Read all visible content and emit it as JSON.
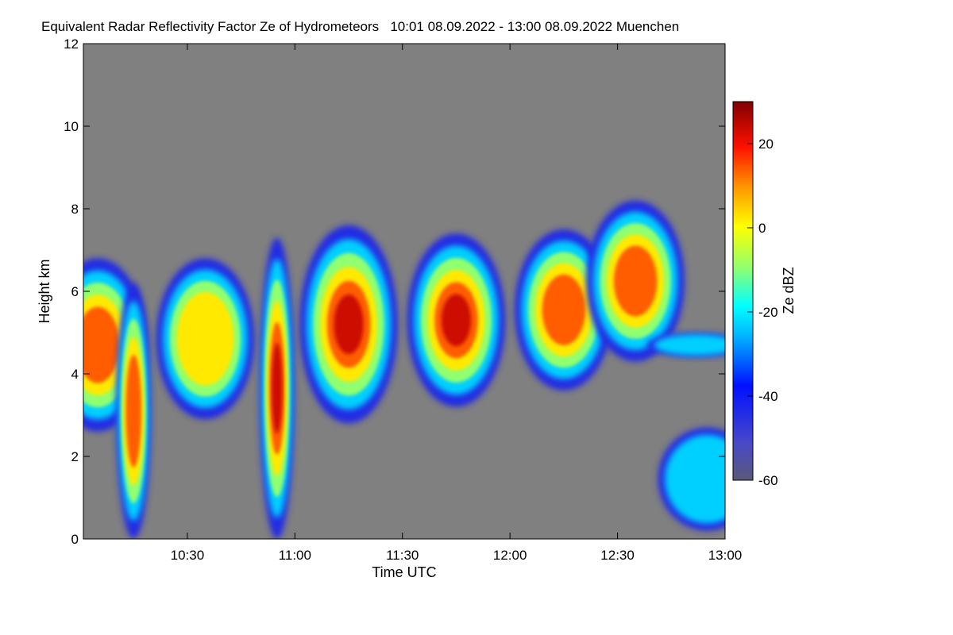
{
  "chart_data": {
    "type": "heatmap",
    "title": "Equivalent Radar Reflectivity Factor Ze of Hydrometeors   10:01 08.09.2022 - 13:00 08.09.2022 Muenchen",
    "xlabel": "Time UTC",
    "ylabel": "Height km",
    "x_ticks": [
      "10:30",
      "11:00",
      "11:30",
      "12:00",
      "12:30",
      "13:00"
    ],
    "xlim": [
      "10:01",
      "13:00"
    ],
    "y_ticks": [
      0,
      2,
      4,
      6,
      8,
      10,
      12
    ],
    "ylim": [
      0,
      12
    ],
    "colorbar": {
      "label": "Ze dBZ",
      "ticks": [
        20,
        0,
        -20,
        -40,
        -60
      ],
      "range": [
        -60,
        30
      ]
    },
    "no_data_color": "#808080",
    "echo_features": [
      {
        "time": "10:05",
        "base_km": 2.6,
        "top_km": 6.8,
        "core_dbz": 22
      },
      {
        "time": "10:15",
        "base_km": 0.0,
        "top_km": 6.2,
        "core_dbz": 15,
        "note": "precipitation shaft"
      },
      {
        "time": "10:35",
        "base_km": 2.9,
        "top_km": 6.8,
        "core_dbz": 8
      },
      {
        "time": "10:55",
        "base_km": 0.0,
        "top_km": 7.3,
        "core_dbz": 25,
        "note": "precipitation shaft"
      },
      {
        "time": "11:15",
        "base_km": 2.8,
        "top_km": 7.6,
        "core_dbz": 27
      },
      {
        "time": "11:45",
        "base_km": 3.2,
        "top_km": 7.4,
        "core_dbz": 24
      },
      {
        "time": "12:15",
        "base_km": 3.6,
        "top_km": 7.5,
        "core_dbz": 20
      },
      {
        "time": "12:35",
        "base_km": 4.3,
        "top_km": 8.2,
        "core_dbz": 22
      },
      {
        "time": "12:52",
        "base_km": 4.4,
        "top_km": 5.0,
        "core_dbz": -22
      },
      {
        "time": "12:55",
        "base_km": 0.2,
        "top_km": 2.7,
        "core_dbz": -25
      }
    ]
  }
}
